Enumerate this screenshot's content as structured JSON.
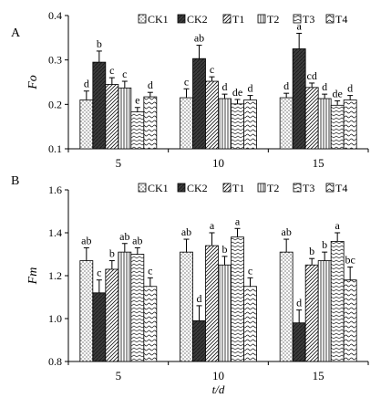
{
  "chart_data": [
    {
      "panel_label": "A",
      "type": "bar",
      "ylabel": "Fo",
      "xlabel": "",
      "ylim": [
        0.1,
        0.4
      ],
      "yticks": [
        "0.1",
        "0.2",
        "0.3",
        "0.4"
      ],
      "categories": [
        "5",
        "10",
        "15"
      ],
      "legend_placement": "top",
      "grid": false,
      "series": [
        {
          "name": "CK1",
          "pattern": "dots",
          "values": [
            0.21,
            0.215,
            0.215
          ],
          "errors": [
            0.02,
            0.02,
            0.01
          ],
          "letters": [
            "d",
            "c",
            "d"
          ]
        },
        {
          "name": "CK2",
          "pattern": "dark",
          "values": [
            0.295,
            0.303,
            0.325
          ],
          "errors": [
            0.025,
            0.03,
            0.035
          ],
          "letters": [
            "b",
            "ab",
            "a"
          ]
        },
        {
          "name": "T1",
          "pattern": "diagonal",
          "values": [
            0.245,
            0.252,
            0.238
          ],
          "errors": [
            0.015,
            0.01,
            0.01
          ],
          "letters": [
            "c",
            "c",
            "cd"
          ]
        },
        {
          "name": "T2",
          "pattern": "vertical",
          "values": [
            0.237,
            0.213,
            0.213
          ],
          "errors": [
            0.015,
            0.01,
            0.01
          ],
          "letters": [
            "c",
            "d",
            "d"
          ]
        },
        {
          "name": "T3",
          "pattern": "zigzag",
          "values": [
            0.183,
            0.201,
            0.198
          ],
          "errors": [
            0.01,
            0.01,
            0.01
          ],
          "letters": [
            "e",
            "de",
            "de"
          ]
        },
        {
          "name": "T4",
          "pattern": "waves",
          "values": [
            0.217,
            0.21,
            0.21
          ],
          "errors": [
            0.01,
            0.01,
            0.01
          ],
          "letters": [
            "d",
            "d",
            "d"
          ]
        }
      ]
    },
    {
      "panel_label": "B",
      "type": "bar",
      "ylabel": "Fm",
      "xlabel": "t/d",
      "ylim": [
        0.8,
        1.6
      ],
      "yticks": [
        "0.8",
        "1.0",
        "1.2",
        "1.4",
        "1.6"
      ],
      "categories": [
        "5",
        "10",
        "15"
      ],
      "legend_placement": "top",
      "grid": false,
      "series": [
        {
          "name": "CK1",
          "pattern": "dots",
          "values": [
            1.27,
            1.31,
            1.31
          ],
          "errors": [
            0.06,
            0.06,
            0.06
          ],
          "letters": [
            "ab",
            "ab",
            "ab"
          ]
        },
        {
          "name": "CK2",
          "pattern": "dark",
          "values": [
            1.12,
            0.99,
            0.98
          ],
          "errors": [
            0.06,
            0.07,
            0.06
          ],
          "letters": [
            "c",
            "d",
            "d"
          ]
        },
        {
          "name": "T1",
          "pattern": "diagonal",
          "values": [
            1.23,
            1.34,
            1.25
          ],
          "errors": [
            0.04,
            0.06,
            0.03
          ],
          "letters": [
            "b",
            "a",
            "b"
          ]
        },
        {
          "name": "T2",
          "pattern": "vertical",
          "values": [
            1.31,
            1.25,
            1.27
          ],
          "errors": [
            0.04,
            0.04,
            0.04
          ],
          "letters": [
            "ab",
            "b",
            "b"
          ]
        },
        {
          "name": "T3",
          "pattern": "zigzag",
          "values": [
            1.3,
            1.38,
            1.36
          ],
          "errors": [
            0.03,
            0.04,
            0.04
          ],
          "letters": [
            "ab",
            "a",
            "a"
          ]
        },
        {
          "name": "T4",
          "pattern": "waves",
          "values": [
            1.15,
            1.15,
            1.18
          ],
          "errors": [
            0.04,
            0.04,
            0.06
          ],
          "letters": [
            "c",
            "c",
            "bc"
          ]
        }
      ]
    }
  ]
}
